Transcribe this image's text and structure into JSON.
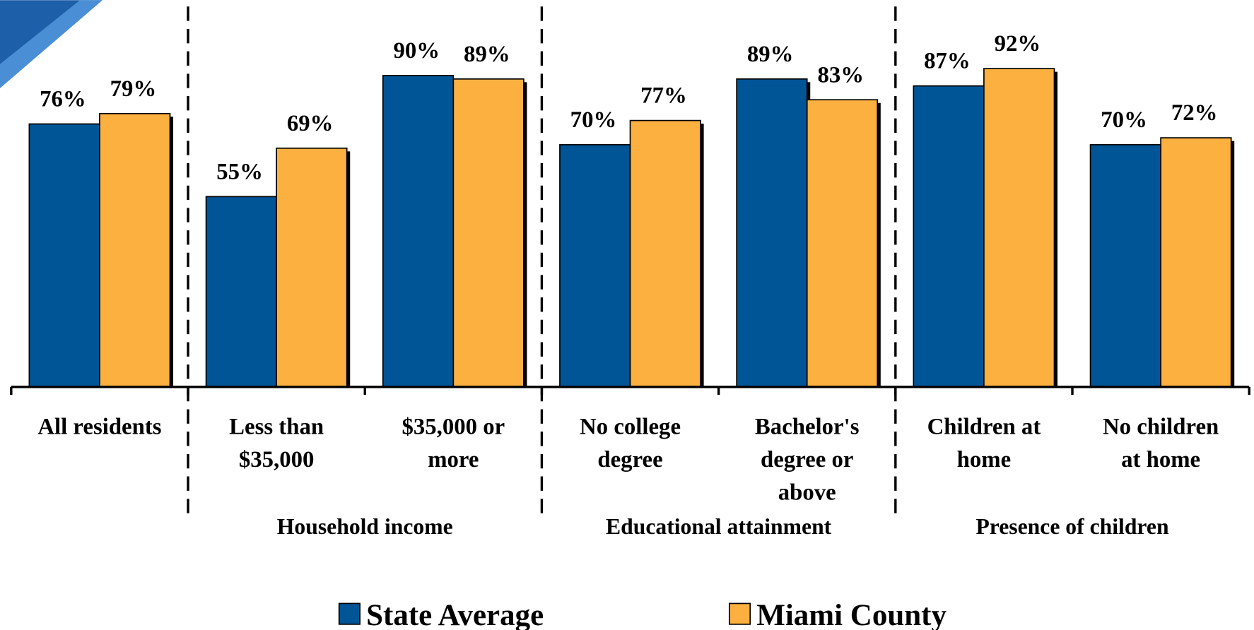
{
  "chart_data": {
    "type": "bar",
    "categories": [
      "All residents",
      "Less than\n$35,000",
      "$35,000 or\nmore",
      "No college\ndegree",
      "Bachelor's\ndegree or\nabove",
      "Children at\nhome",
      "No children\nat home"
    ],
    "groups": [
      "Household income",
      "Educational attainment",
      "Presence of children"
    ],
    "series": [
      {
        "name": "State Average",
        "color": "#005596",
        "values": [
          76,
          55,
          90,
          70,
          89,
          87,
          70
        ],
        "value_labels": [
          "76%",
          "55%",
          "90%",
          "70%",
          "89%",
          "87%",
          "70%"
        ]
      },
      {
        "name": "Miami County",
        "color": "#fbb040",
        "values": [
          79,
          69,
          89,
          77,
          83,
          92,
          72
        ],
        "value_labels": [
          "79%",
          "69%",
          "89%",
          "77%",
          "83%",
          "92%",
          "72%"
        ]
      }
    ],
    "ylim": [
      0,
      100
    ]
  }
}
